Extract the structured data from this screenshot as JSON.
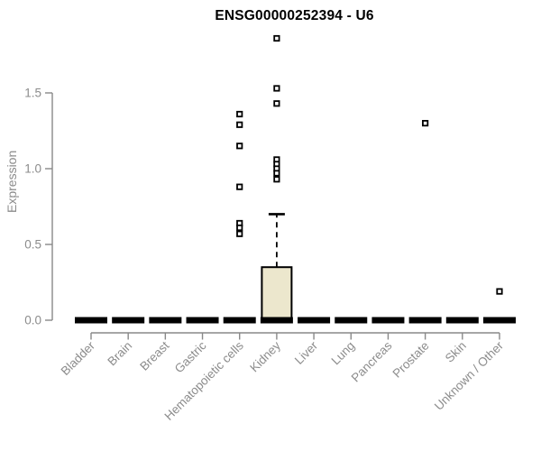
{
  "chart_data": {
    "type": "boxplot",
    "title": "ENSG00000252394 - U6",
    "ylabel": "Expression",
    "ylim": [
      0,
      1.9
    ],
    "yticks": [
      0.0,
      0.5,
      1.0,
      1.5
    ],
    "ytick_labels": [
      "0.0",
      "0.5",
      "1.0",
      "1.5"
    ],
    "grid": false,
    "legend": "none",
    "categories": [
      "Bladder",
      "Brain",
      "Breast",
      "Gastric",
      "Hematopoietic cells",
      "Kidney",
      "Liver",
      "Lung",
      "Pancreas",
      "Prostate",
      "Skin",
      "Unknown / Other"
    ],
    "boxes": [
      {
        "category": "Bladder",
        "min": 0,
        "q1": 0,
        "median": 0,
        "q3": 0,
        "max": 0,
        "outliers": []
      },
      {
        "category": "Brain",
        "min": 0,
        "q1": 0,
        "median": 0,
        "q3": 0,
        "max": 0,
        "outliers": []
      },
      {
        "category": "Breast",
        "min": 0,
        "q1": 0,
        "median": 0,
        "q3": 0,
        "max": 0,
        "outliers": []
      },
      {
        "category": "Gastric",
        "min": 0,
        "q1": 0,
        "median": 0,
        "q3": 0,
        "max": 0,
        "outliers": []
      },
      {
        "category": "Hematopoietic cells",
        "min": 0,
        "q1": 0,
        "median": 0,
        "q3": 0,
        "max": 0,
        "outliers": [
          1.36,
          1.29,
          1.15,
          0.88,
          0.64,
          0.61,
          0.57
        ]
      },
      {
        "category": "Kidney",
        "min": 0,
        "q1": 0,
        "median": 0,
        "q3": 0.35,
        "max": 0.7,
        "outliers": [
          1.86,
          1.53,
          1.43,
          1.06,
          1.03,
          1.0,
          0.97,
          0.93
        ]
      },
      {
        "category": "Liver",
        "min": 0,
        "q1": 0,
        "median": 0,
        "q3": 0,
        "max": 0,
        "outliers": []
      },
      {
        "category": "Lung",
        "min": 0,
        "q1": 0,
        "median": 0,
        "q3": 0,
        "max": 0,
        "outliers": []
      },
      {
        "category": "Pancreas",
        "min": 0,
        "q1": 0,
        "median": 0,
        "q3": 0,
        "max": 0,
        "outliers": []
      },
      {
        "category": "Prostate",
        "min": 0,
        "q1": 0,
        "median": 0,
        "q3": 0,
        "max": 0,
        "outliers": [
          1.3
        ]
      },
      {
        "category": "Skin",
        "min": 0,
        "q1": 0,
        "median": 0,
        "q3": 0,
        "max": 0,
        "outliers": []
      },
      {
        "category": "Unknown / Other",
        "min": 0,
        "q1": 0,
        "median": 0,
        "q3": 0,
        "max": 0,
        "outliers": [
          0.19
        ]
      }
    ],
    "colors": {
      "box_fill": "#ece7cd",
      "box_stroke": "#000000",
      "axis": "#888888",
      "tick_text": "#8c8c8c",
      "title_text": "#000000"
    }
  }
}
